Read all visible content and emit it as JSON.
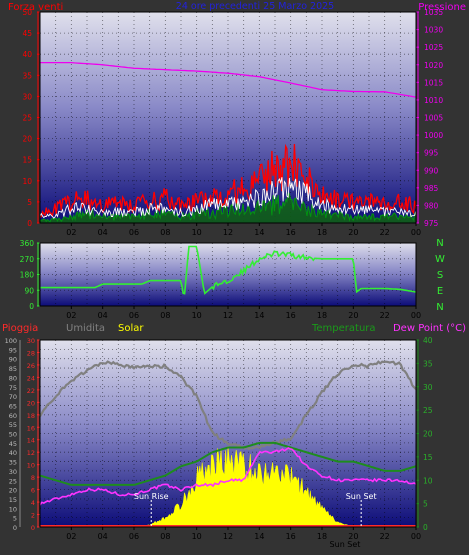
{
  "colors": {
    "background": "#333333",
    "frame": "#000000",
    "wind": "#ff0000",
    "gust_avg": "#ffffff",
    "wind_low": "#00aa00",
    "pressure": "#ee00ee",
    "direction": "#33ee33",
    "rain": "#ff2a2a",
    "humidity": "#808080",
    "solar": "#ffff00",
    "temperature": "#1e8c1e",
    "dewpoint": "#ff33ff",
    "axis_text": "#dddddd",
    "header_blue": "#2222dd"
  },
  "chart_data": [
    {
      "type": "line",
      "title": "24 ore precedenti 25 Marzo 2025",
      "left_label": "Forza venti",
      "right_label": "Pressione",
      "x_ticks": [
        "02",
        "04",
        "06",
        "08",
        "10",
        "12",
        "14",
        "16",
        "18",
        "20",
        "22",
        "00"
      ],
      "ylim_left": [
        0,
        50
      ],
      "ytick_left": [
        "0",
        "5",
        "10",
        "15",
        "20",
        "25",
        "30",
        "35",
        "40",
        "45",
        "50"
      ],
      "ylim_right": [
        975,
        1035
      ],
      "ytick_right": [
        "975",
        "980",
        "985",
        "990",
        "995",
        "1000",
        "1005",
        "1010",
        "1015",
        "1020",
        "1025",
        "1030",
        "1035"
      ],
      "grid": true,
      "series": [
        {
          "role": "wind_max",
          "x": [
            0,
            1,
            2,
            3,
            4,
            5,
            6,
            7,
            8,
            9,
            10,
            11,
            12,
            13,
            14,
            15,
            16,
            17,
            18,
            19,
            20,
            21,
            22,
            23,
            24
          ],
          "values": [
            3,
            4,
            6,
            7,
            5,
            6,
            5,
            6,
            7,
            5,
            6,
            8,
            8,
            10,
            12,
            15,
            17,
            12,
            8,
            7,
            6,
            6,
            5,
            6,
            5
          ]
        },
        {
          "role": "wind_avg",
          "x": [
            0,
            1,
            2,
            3,
            4,
            5,
            6,
            7,
            8,
            9,
            10,
            11,
            12,
            13,
            14,
            15,
            16,
            17,
            18,
            19,
            20,
            21,
            22,
            23,
            24
          ],
          "values": [
            2,
            2,
            4,
            4,
            3,
            3,
            3,
            4,
            4,
            3,
            4,
            5,
            5,
            6,
            7,
            9,
            10,
            8,
            5,
            4,
            4,
            4,
            3,
            3,
            3
          ]
        },
        {
          "role": "wind_low",
          "x": [
            0,
            1,
            2,
            3,
            4,
            5,
            6,
            7,
            8,
            9,
            10,
            11,
            12,
            13,
            14,
            15,
            16,
            17,
            18,
            19,
            20,
            21,
            22,
            23,
            24
          ],
          "values": [
            1,
            1,
            2,
            3,
            2,
            2,
            2,
            3,
            3,
            2,
            3,
            3,
            4,
            4,
            5,
            6,
            6,
            5,
            3,
            3,
            2,
            2,
            2,
            2,
            2
          ]
        },
        {
          "role": "pressure",
          "x": [
            0,
            2,
            4,
            6,
            8,
            10,
            12,
            14,
            16,
            18,
            20,
            22,
            24
          ],
          "values": [
            1020.6,
            1020.6,
            1020.0,
            1019.0,
            1018.6,
            1018.2,
            1017.6,
            1016.6,
            1014.8,
            1012.9,
            1012.4,
            1012.3,
            1010.8
          ]
        }
      ]
    },
    {
      "type": "line",
      "title": "",
      "x_ticks": [
        "02",
        "04",
        "06",
        "08",
        "10",
        "12",
        "14",
        "16",
        "18",
        "20",
        "22",
        "00"
      ],
      "ylim": [
        0,
        360
      ],
      "yticks": [
        "0",
        "90",
        "180",
        "270",
        "360"
      ],
      "right_labels": [
        "N",
        "W",
        "S",
        "E",
        "N"
      ],
      "grid": true,
      "series": [
        {
          "role": "wind_direction",
          "x": [
            0,
            3.5,
            4.0,
            6.5,
            7.0,
            9.0,
            9.2,
            9.5,
            10.0,
            10.5,
            11.0,
            11.5,
            12.0,
            12.5,
            13.0,
            13.5,
            14.0,
            14.5,
            15.0,
            16.0,
            17.0,
            18.0,
            19.0,
            20.0,
            20.2,
            20.5,
            22.0,
            23.0,
            24.0
          ],
          "values": [
            105,
            105,
            125,
            125,
            145,
            145,
            40,
            340,
            340,
            70,
            110,
            130,
            145,
            175,
            200,
            235,
            270,
            285,
            300,
            290,
            275,
            270,
            270,
            270,
            80,
            100,
            100,
            95,
            80
          ]
        }
      ]
    },
    {
      "type": "area",
      "title": "",
      "left_labels": [
        "Pioggia",
        "Umidita",
        "Solar"
      ],
      "right_labels": [
        "Temperatura",
        "Dew Point (°C)"
      ],
      "x_ticks": [
        "02",
        "04",
        "06",
        "08",
        "10",
        "12",
        "14",
        "16",
        "18",
        "20",
        "22",
        "00"
      ],
      "ylim_humidity": [
        0,
        100
      ],
      "ytick_humidity": [
        "0",
        "5",
        "10",
        "15",
        "20",
        "25",
        "30",
        "35",
        "40",
        "45",
        "50",
        "55",
        "60",
        "65",
        "70",
        "75",
        "80",
        "85",
        "90",
        "95",
        "100"
      ],
      "ylim_rain": [
        0,
        30
      ],
      "ytick_rain": [
        "0",
        "2",
        "4",
        "6",
        "8",
        "10",
        "12",
        "14",
        "16",
        "18",
        "20",
        "22",
        "24",
        "26",
        "28",
        "30"
      ],
      "ylim_temp": [
        0,
        40
      ],
      "ytick_temp": [
        "0",
        "5",
        "10",
        "15",
        "20",
        "25",
        "30",
        "35",
        "40"
      ],
      "annotations": [
        "Sun Rise",
        "Sun Set",
        "Sun Set"
      ],
      "grid": true,
      "series": [
        {
          "role": "rain",
          "x": [
            0,
            24
          ],
          "values": [
            0,
            0
          ]
        },
        {
          "role": "humidity",
          "x": [
            0,
            1,
            2,
            3,
            4,
            5,
            6,
            7,
            8,
            9,
            10,
            11,
            12,
            13,
            14,
            15,
            16,
            17,
            18,
            19,
            20,
            21,
            22,
            23,
            24
          ],
          "values": [
            60,
            70,
            78,
            84,
            88,
            87,
            85,
            86,
            86,
            80,
            70,
            50,
            45,
            42,
            43,
            45,
            47,
            60,
            72,
            82,
            87,
            86,
            89,
            87,
            73
          ]
        },
        {
          "role": "solar",
          "x": [
            6.0,
            6.5,
            7,
            8,
            9,
            10,
            11,
            12,
            13,
            14,
            15,
            16,
            17,
            18,
            19,
            20,
            21,
            24
          ],
          "values": [
            0,
            0,
            0.5,
            2,
            5,
            11,
            14,
            15,
            14,
            12,
            13,
            11,
            8,
            4,
            1,
            0,
            0,
            0
          ]
        },
        {
          "role": "temperature",
          "x": [
            0,
            1,
            2,
            3,
            4,
            5,
            6,
            7,
            8,
            9,
            10,
            11,
            12,
            13,
            14,
            15,
            16,
            17,
            18,
            19,
            20,
            21,
            22,
            23,
            24
          ],
          "values": [
            11,
            10,
            9,
            9,
            9,
            9,
            9,
            10,
            11,
            13,
            14,
            16,
            17,
            17,
            18,
            18,
            17,
            16,
            15,
            14,
            14,
            13,
            12,
            12,
            13
          ]
        },
        {
          "role": "dewpoint",
          "x": [
            0,
            1,
            2,
            3,
            4,
            5,
            6,
            7,
            8,
            9,
            10,
            11,
            12,
            13,
            14,
            15,
            16,
            17,
            18,
            19,
            20,
            21,
            22,
            23,
            24
          ],
          "values": [
            5,
            6,
            7,
            8,
            8,
            7,
            7,
            8,
            9,
            8,
            9,
            9,
            10,
            10,
            16,
            16,
            17,
            13,
            11,
            10,
            10,
            10,
            10,
            10,
            9
          ]
        }
      ]
    }
  ]
}
